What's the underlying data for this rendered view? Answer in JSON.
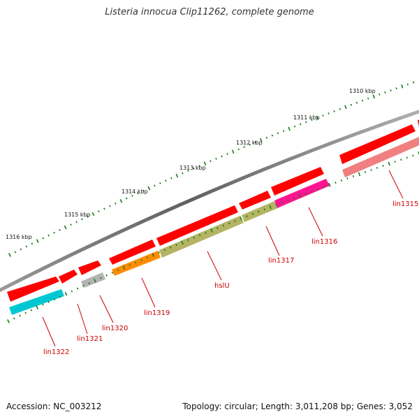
{
  "title": "Listeria innocua Clip11262, complete genome",
  "footer": {
    "accession": "Accession: NC_003212",
    "topology": "Topology: circular; Length: 3,011,208 bp; Genes: 3,052"
  },
  "kbp_labels": [
    {
      "text": "1316 kbp"
    },
    {
      "text": "1315 kbp"
    },
    {
      "text": "1314 kbp"
    },
    {
      "text": "1313 kbp"
    },
    {
      "text": "1312 kbp"
    },
    {
      "text": "1311 kbp"
    },
    {
      "text": "1310 kbp"
    }
  ],
  "genes": [
    {
      "label": "lin1322",
      "color": "#00c8d2"
    },
    {
      "label": "lin1321",
      "color": "#ff0000"
    },
    {
      "label": "lin1320",
      "color": "#b4b4b4"
    },
    {
      "label": "lin1319",
      "color": "#ff8c00"
    },
    {
      "label": "hslU",
      "color": "#b4b464"
    },
    {
      "label": "lin1317",
      "color": "#b4b464"
    },
    {
      "label": "lin1316",
      "color": "#ff1493"
    },
    {
      "label": "lin1315",
      "color": "#f08080"
    }
  ],
  "colors": {
    "cds": "#ff0000",
    "backbone": "#808080",
    "ticks": "#1a7a1a",
    "label": "#cc0000"
  }
}
